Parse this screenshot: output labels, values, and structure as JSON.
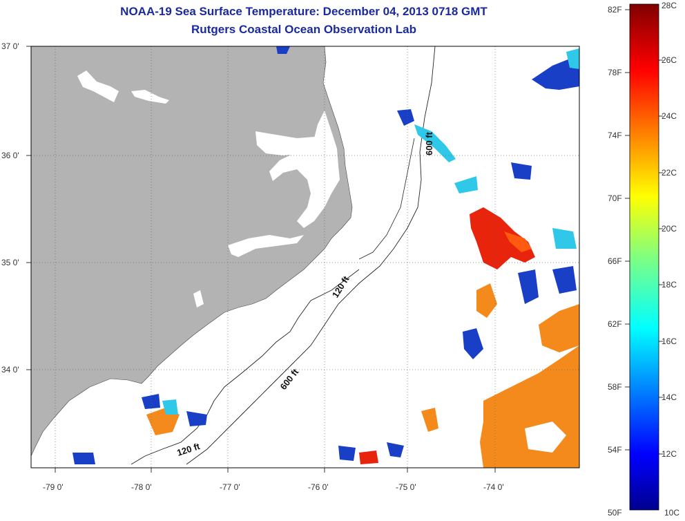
{
  "title": {
    "line1": "NOAA-19 Sea Surface Temperature:  December 04, 2013 0718 GMT",
    "line2": "Rutgers Coastal Ocean Observation Lab"
  },
  "map": {
    "lon_ticks": [
      "-79 0'",
      "-78 0'",
      "-77 0'",
      "-76 0'",
      "-75 0'",
      "-74 0'"
    ],
    "lat_ticks": [
      "37 0'",
      "36 0'",
      "35 0'",
      "34 0'"
    ],
    "contours": {
      "c120_upper": "120 ft",
      "c600_upper": "600 ft",
      "c600_lower": "600 ft",
      "c120_lower": "120 ft"
    },
    "colors": {
      "land": "#b3b3b3",
      "ocean_no_data": "#ffffff",
      "warm": "#e8240c",
      "orange": "#f58a1c",
      "cold": "#1a3fc7",
      "cyan": "#30c8e8"
    }
  },
  "colorbar": {
    "fahrenheit": [
      "82F",
      "78F",
      "74F",
      "70F",
      "66F",
      "62F",
      "58F",
      "54F",
      "50F"
    ],
    "celsius": [
      "28C",
      "26C",
      "24C",
      "22C",
      "20C",
      "18C",
      "16C",
      "14C",
      "12C",
      "10C"
    ],
    "range_c": [
      10,
      28
    ]
  }
}
